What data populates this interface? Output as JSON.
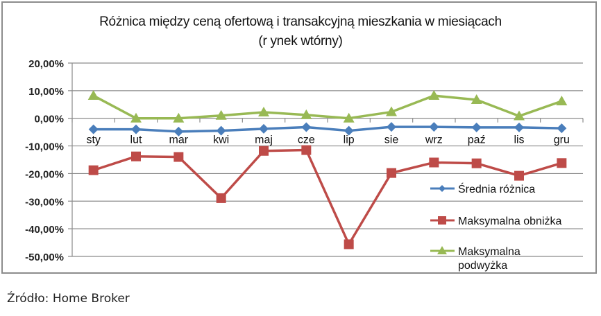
{
  "chart_data": {
    "type": "line",
    "title": "Różnica między ceną ofertową i transakcyjną mieszkania w miesiącach",
    "subtitle": "(r ynek wtórny)",
    "xlabel": "",
    "ylabel": "",
    "ylim": [
      -0.5,
      0.2
    ],
    "yticks": [
      0.2,
      0.1,
      0.0,
      -0.1,
      -0.2,
      -0.3,
      -0.4,
      -0.5
    ],
    "ytick_labels": [
      "20,00%",
      "10,00%",
      "0,00%",
      "-10,00%",
      "-20,00%",
      "-30,00%",
      "-40,00%",
      "-50,00%"
    ],
    "grid": true,
    "legend_position": "right-inside",
    "categories": [
      "sty",
      "lut",
      "mar",
      "kwi",
      "maj",
      "cze",
      "lip",
      "sie",
      "wrz",
      "paź",
      "lis",
      "gru"
    ],
    "series": [
      {
        "name": "Średnia różnica",
        "color": "#4a7ebb",
        "marker": "diamond",
        "values": [
          -0.04,
          -0.04,
          -0.048,
          -0.045,
          -0.038,
          -0.032,
          -0.045,
          -0.031,
          -0.031,
          -0.033,
          -0.033,
          -0.036
        ]
      },
      {
        "name": "Maksymalna obniżka",
        "color": "#be4b48",
        "marker": "square",
        "values": [
          -0.188,
          -0.138,
          -0.14,
          -0.289,
          -0.118,
          -0.115,
          -0.456,
          -0.198,
          -0.16,
          -0.163,
          -0.208,
          -0.162
        ]
      },
      {
        "name": "Maksymalna podwyżka",
        "legend_lines": [
          "Maksymalna",
          "podwyżka"
        ],
        "color": "#98b954",
        "marker": "triangle",
        "values": [
          0.082,
          0.0,
          0.0,
          0.01,
          0.022,
          0.012,
          0.0,
          0.023,
          0.082,
          0.067,
          0.008,
          0.062
        ]
      }
    ]
  },
  "header": {
    "title_line1": "Różnica między ceną ofertową i transakcyjną mieszkania w miesiącach",
    "title_line2": "(r ynek wtórny)"
  },
  "footer": {
    "source": "Źródło: Home Broker"
  }
}
